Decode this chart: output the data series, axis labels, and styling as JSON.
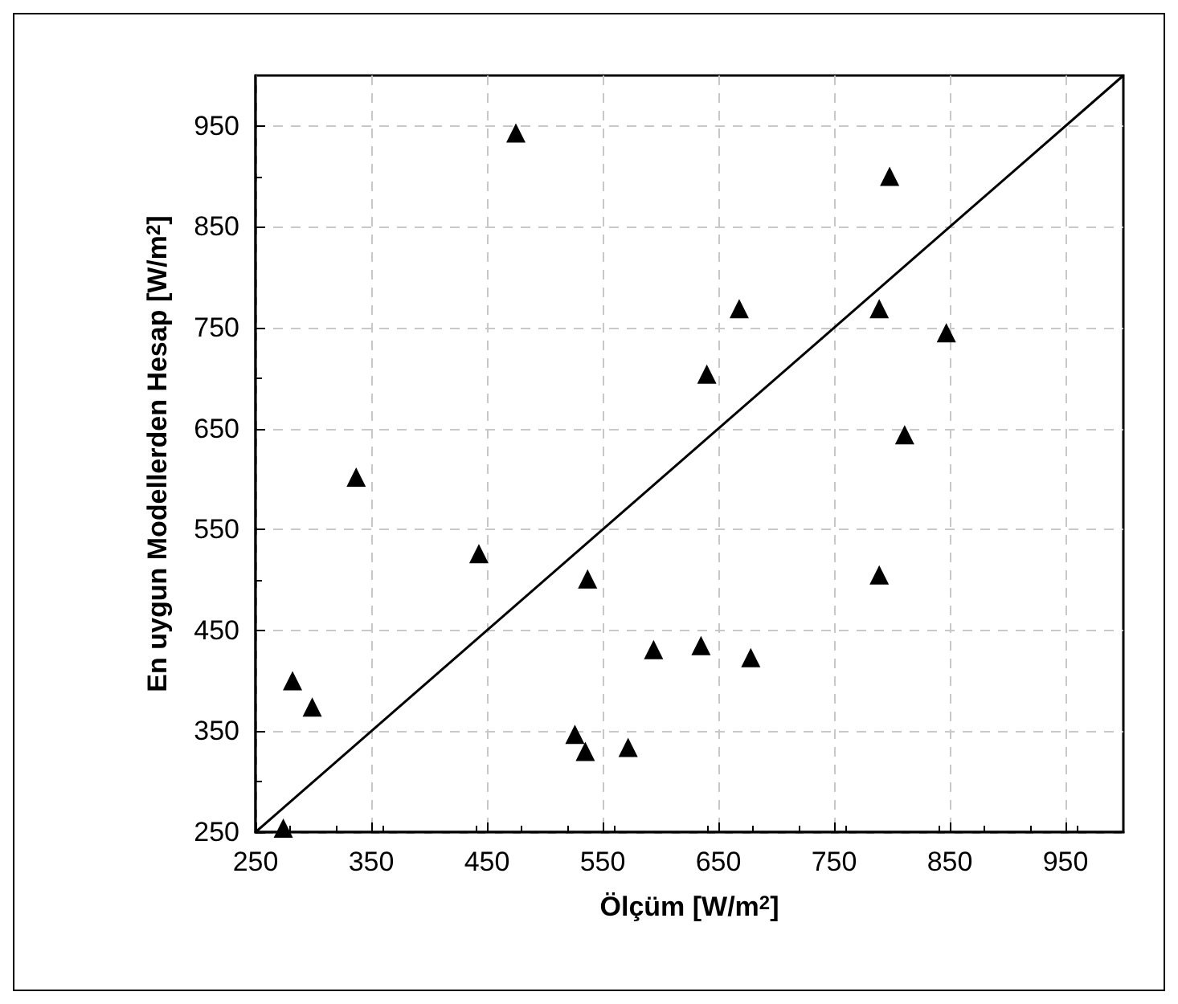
{
  "chart_data": {
    "type": "scatter",
    "xlabel": "Ölçüm [W/m$^{2}$]",
    "ylabel": "En uygun Modellerden Hesap [W/m$^{2}$]",
    "xlim": [
      250,
      1000
    ],
    "ylim": [
      250,
      1000
    ],
    "xticks": [
      250,
      350,
      450,
      550,
      650,
      750,
      850,
      950
    ],
    "yticks": [
      250,
      350,
      450,
      550,
      650,
      750,
      850,
      950
    ],
    "grid": true,
    "series": [
      {
        "color": "#000000",
        "marker": "triangle",
        "x": [
          475,
          337,
          443,
          537,
          282,
          299,
          594,
          635,
          526,
          535,
          572,
          274,
          640,
          798,
          668,
          789,
          847,
          811,
          789,
          678
        ],
        "values": [
          943,
          602,
          526,
          501,
          400,
          374,
          431,
          435,
          347,
          330,
          334,
          254,
          704,
          900,
          769,
          769,
          745,
          644,
          505,
          423
        ]
      },
      {
        "type": "line",
        "color": "#000000",
        "marker": "none",
        "line_style": "solid",
        "x": [
          250,
          1000
        ],
        "values": [
          250,
          1000
        ]
      }
    ]
  }
}
